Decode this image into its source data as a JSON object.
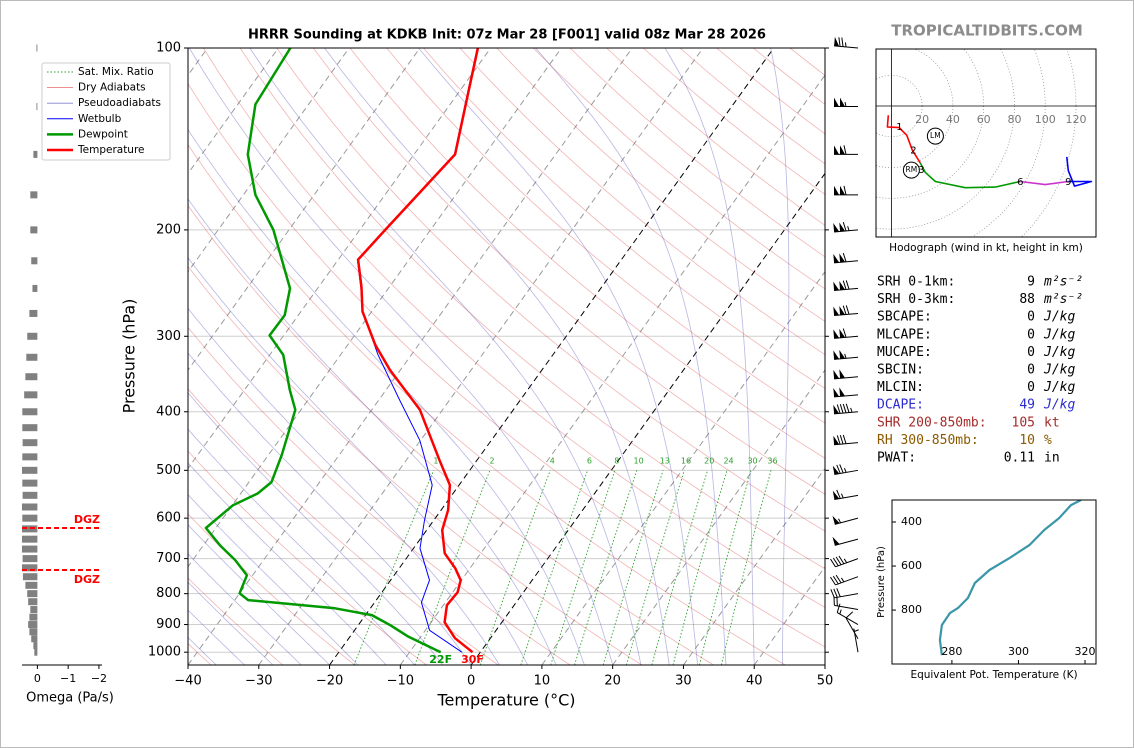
{
  "site": "TROPICALTIDBITS.COM",
  "chart_data": [
    {
      "type": "skewt",
      "title": "HRRR Sounding at KDKB Init: 07z Mar 28 [F001] valid 08z Mar 28 2026",
      "xlabel": "Temperature (°C)",
      "ylabel": "Pressure (hPa)",
      "xlim": [
        -40,
        50
      ],
      "ylim": [
        1050,
        100
      ],
      "log_y": true,
      "grid": true,
      "legend": "upper left",
      "xticks": [
        {
          "value": -40,
          "label": "−40"
        },
        {
          "value": -30,
          "label": "−30"
        },
        {
          "value": -20,
          "label": "−20"
        },
        {
          "value": -10,
          "label": "−10"
        },
        0,
        10,
        20,
        30,
        40,
        50
      ],
      "yticks": [
        100,
        200,
        300,
        400,
        500,
        600,
        700,
        800,
        900,
        1000
      ],
      "highlight_isotherms": [
        -20,
        0
      ],
      "background": [
        {
          "name": "Sat. Mix. Ratio",
          "color": "#2ca02c",
          "values": [
            1,
            2,
            4,
            6,
            8,
            10,
            13,
            16,
            20,
            24,
            30,
            36
          ]
        },
        {
          "name": "Dry Adiabats",
          "color": "#d62728"
        },
        {
          "name": "Pseudoadiabats",
          "color": "#3030b0"
        }
      ],
      "series": [
        {
          "name": "Wetbulb",
          "color": "#0000ff",
          "linewidth": 1,
          "pressure": [
            1000,
            920,
            827,
            760,
            673,
            605,
            529,
            446,
            383,
            322,
            273,
            249,
            224,
            200,
            150,
            120,
            100
          ],
          "values": [
            -2.6,
            -9.4,
            -13.4,
            -14.5,
            -19.1,
            -21.3,
            -23.8,
            -30.1,
            -37,
            -44.7,
            -51.3,
            -54,
            -57.3,
            -56.5,
            -54.3,
            -58.5,
            -61.9
          ]
        },
        {
          "name": "Dewpoint",
          "color": "#009900",
          "linewidth": 2.5,
          "surface_label": "22F",
          "pressure": [
            1000,
            941,
            902,
            868,
            846,
            820,
            799,
            746,
            704,
            665,
            623,
            571,
            546,
            523,
            472,
            397,
            368,
            322,
            299,
            277,
            250,
            200,
            175,
            150,
            124,
            100
          ],
          "values": [
            -5.6,
            -11.9,
            -15.5,
            -19.1,
            -25,
            -38.1,
            -40,
            -40.8,
            -44,
            -47.7,
            -51.4,
            -49.9,
            -47.6,
            -46.8,
            -48.1,
            -50.8,
            -53.6,
            -58.1,
            -62,
            -61.9,
            -63.9,
            -72.2,
            -78.3,
            -83.5,
            -87.5,
            -88.3
          ]
        },
        {
          "name": "Temperature",
          "color": "#ff0000",
          "linewidth": 2.5,
          "surface_label": "30F",
          "pressure": [
            1000,
            948,
            892,
            836,
            796,
            760,
            726,
            686,
            628,
            582,
            529,
            481,
            397,
            341,
            310,
            273,
            249,
            224,
            200,
            150,
            120,
            100
          ],
          "values": [
            -1.1,
            -5.0,
            -8.1,
            -9.5,
            -9.3,
            -10.1,
            -12.1,
            -15.1,
            -17.8,
            -19.0,
            -21.3,
            -25.3,
            -33.2,
            -41.5,
            -46.1,
            -51.3,
            -53.9,
            -57.2,
            -56.4,
            -54.2,
            -58.4,
            -61.8
          ]
        }
      ],
      "wind_barbs": {
        "pressure": [
          100,
          125,
          150,
          175,
          200,
          225,
          250,
          275,
          300,
          325,
          350,
          375,
          400,
          450,
          500,
          550,
          600,
          650,
          700,
          750,
          800,
          850,
          900,
          950,
          1000
        ],
        "speed": [
          75,
          105,
          110,
          110,
          115,
          110,
          120,
          120,
          110,
          105,
          100,
          100,
          95,
          80,
          75,
          65,
          55,
          50,
          45,
          35,
          30,
          20,
          15,
          10,
          5
        ],
        "direction": [
          275,
          270,
          270,
          270,
          265,
          265,
          265,
          265,
          265,
          265,
          265,
          265,
          265,
          265,
          260,
          260,
          255,
          255,
          250,
          250,
          260,
          280,
          300,
          330,
          350
        ]
      }
    },
    {
      "type": "hbar",
      "xlabel": "Omega (Pa/s)",
      "color": "#808080",
      "xlim": [
        0.5,
        -2.1
      ],
      "ylim": [
        1050,
        100
      ],
      "log_y": true,
      "xticks": [
        0,
        {
          "value": -1,
          "label": "−1"
        },
        {
          "value": -2,
          "label": "−2"
        }
      ],
      "pressure": [
        100,
        125,
        150,
        175,
        200,
        225,
        250,
        275,
        300,
        325,
        350,
        375,
        400,
        425,
        450,
        475,
        500,
        525,
        550,
        575,
        600,
        625,
        650,
        675,
        700,
        725,
        750,
        775,
        800,
        825,
        850,
        875,
        900,
        925,
        950,
        975,
        1000
      ],
      "values": [
        0.03,
        0.03,
        0.13,
        0.23,
        0.23,
        0.2,
        0.16,
        0.26,
        0.33,
        0.36,
        0.39,
        0.43,
        0.49,
        0.49,
        0.48,
        0.49,
        0.5,
        0.49,
        0.48,
        0.5,
        0.49,
        0.5,
        0.5,
        0.5,
        0.48,
        0.5,
        0.47,
        0.39,
        0.33,
        0.3,
        0.23,
        0.26,
        0.3,
        0.26,
        0.2,
        0.13,
        0.1
      ],
      "dgz_pressure": [
        623,
        731
      ],
      "dgz_labels": [
        "DGZ",
        "DGZ"
      ],
      "dgz_color": "#ff0000"
    },
    {
      "type": "hodograph",
      "caption": "Hodograph (wind in kt, height in km)",
      "xlim": [
        -10,
        133
      ],
      "ylim": [
        -85,
        37
      ],
      "xticks": [
        20,
        40,
        60,
        80,
        100,
        120
      ],
      "series": [
        {
          "color": "#ff0000",
          "u": [
            -2,
            -2.6,
            5,
            10,
            13.6,
            18.8
          ],
          "v": [
            -6,
            -13.6,
            -14,
            -19,
            -28.6,
            -37
          ]
        },
        {
          "color": "#009900",
          "u": [
            18.8,
            22,
            28.6,
            48,
            67.5,
            83.8
          ],
          "v": [
            -37,
            -43,
            -49,
            -53,
            -52.6,
            -49
          ]
        },
        {
          "color": "#cc33cc",
          "u": [
            83.8,
            100,
            115
          ],
          "v": [
            -49,
            -51,
            -49
          ]
        },
        {
          "color": "#0000ff",
          "u": [
            115,
            130,
            119,
            115,
            114
          ],
          "v": [
            -49,
            -49,
            -52,
            -42,
            -33
          ]
        }
      ],
      "height_labels": {
        "values": [
          1,
          2,
          3,
          6,
          9
        ],
        "u": [
          5.2,
          14.3,
          19.5,
          83.8,
          115
        ],
        "v": [
          -13.6,
          -29,
          -41.5,
          -49.4,
          -49.4
        ]
      },
      "storm_motion": [
        {
          "label": "LM",
          "u": 28.6,
          "v": -19.5
        },
        {
          "label": "RM",
          "u": 13,
          "v": -41.6
        }
      ]
    },
    {
      "type": "line",
      "xlabel": "Equivalent Pot. Temperature (K)",
      "ylabel": "Pressure (hPa)",
      "color": "#3a96a8",
      "xlim": [
        262,
        323.3
      ],
      "ylim": [
        1045,
        300
      ],
      "xticks": [
        280,
        300,
        320
      ],
      "yticks": [
        400,
        600,
        800
      ],
      "x": [
        277,
        276.4,
        277,
        279.4,
        281.8,
        284.8,
        286.9,
        291.3,
        297.3,
        303.3,
        307.8,
        312.2,
        315.8,
        318.8
      ],
      "pressure": [
        1005,
        936,
        868,
        814,
        791,
        745,
        677,
        618,
        564,
        505,
        436,
        382,
        323,
        300
      ]
    }
  ],
  "stats": {
    "rows": [
      {
        "label": "SRH 0-1km:",
        "value": 9,
        "unit": "m²s⁻²",
        "color": "#000000"
      },
      {
        "label": "SRH 0-3km:",
        "value": 88,
        "unit": "m²s⁻²",
        "color": "#000000"
      },
      {
        "label": "SBCAPE:",
        "value": 0,
        "unit": "J/kg",
        "color": "#000000"
      },
      {
        "label": "MLCAPE:",
        "value": 0,
        "unit": "J/kg",
        "color": "#000000"
      },
      {
        "label": "MUCAPE:",
        "value": 0,
        "unit": "J/kg",
        "color": "#000000"
      },
      {
        "label": "SBCIN:",
        "value": 0,
        "unit": "J/kg",
        "color": "#000000"
      },
      {
        "label": "MLCIN:",
        "value": 0,
        "unit": "J/kg",
        "color": "#000000"
      },
      {
        "label": "DCAPE:",
        "value": 49,
        "unit": "J/kg",
        "color": "#2b2bd0"
      },
      {
        "label": "SHR 200-850mb:",
        "value": 105,
        "unit": "kt",
        "color": "#a52a2a"
      },
      {
        "label": "RH 300-850mb:",
        "value": 10,
        "unit": "%",
        "color": "#8b5a00"
      },
      {
        "label": "PWAT:",
        "value": 0.11,
        "unit": "in",
        "color": "#000000"
      }
    ]
  }
}
